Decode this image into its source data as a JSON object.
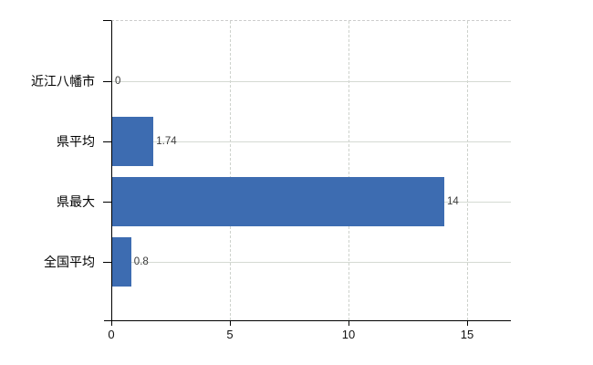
{
  "chart_data": {
    "type": "bar",
    "orientation": "horizontal",
    "title": "",
    "xlabel": "",
    "ylabel": "",
    "categories": [
      "近江八幡市",
      "県平均",
      "県最大",
      "全国平均"
    ],
    "values": [
      0,
      1.74,
      14,
      0.8
    ],
    "value_labels": [
      "0",
      "1.74",
      "14",
      "0.8"
    ],
    "xticks": [
      "0",
      "5",
      "10",
      "15"
    ],
    "xtick_values": [
      0,
      5,
      10,
      15
    ],
    "xlim": [
      0,
      16.8
    ],
    "grid": "vertical gridlines dashed at 5/10/15; horizontal line through each category row; dashed top border",
    "legend": false,
    "colors": {
      "bar": "#3D6CB1",
      "axis": "#000000",
      "vertical_gridline": "#CDD2CC",
      "row_gridline": "#D5DAD3",
      "plot_top_border": "#CDCDCD",
      "category_label": "#000000",
      "value_label": "#3A3A3A",
      "background": "#FFFFFF"
    }
  }
}
